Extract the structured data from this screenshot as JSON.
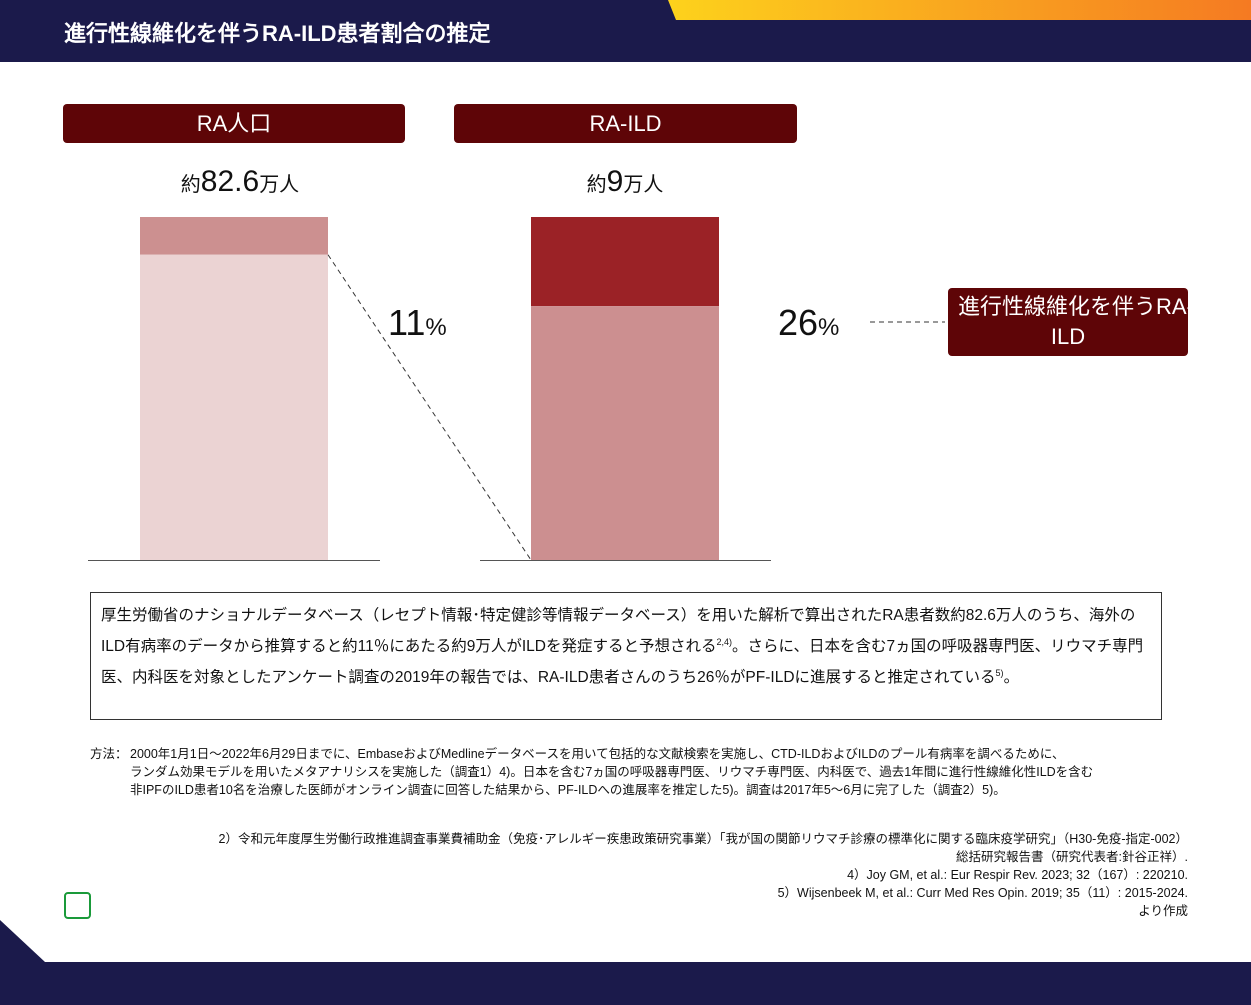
{
  "title": "進行性線維化を伴うRA-ILD患者割合の推定",
  "colors": {
    "header": "#1b1a4b",
    "pill": "#5e0507",
    "left_base": "#ebd3d3",
    "left_top": "#cc9090",
    "right_base": "#cc8f90",
    "right_top": "#9b2226"
  },
  "chart_data": {
    "type": "bar",
    "stacked": true,
    "categories": [
      "RA人口",
      "RA-ILD"
    ],
    "totals": [
      {
        "prefix": "約",
        "value": "82.6",
        "unit": "万人"
      },
      {
        "prefix": "約",
        "value": "9",
        "unit": "万人"
      }
    ],
    "series": [
      {
        "values": [
          89,
          74
        ]
      },
      {
        "values": [
          11,
          26
        ]
      }
    ],
    "percent_labels": [
      {
        "value": "11",
        "unit": "%"
      },
      {
        "value": "26",
        "unit": "%"
      }
    ],
    "annotation": "進行性線維化を伴うRA-ILD"
  },
  "note": "厚生労働省のナショナルデータベース（レセプト情報･特定健診等情報データベース）を用いた解析で算出されたRA患者数約82.6万人のうち、海外のILD有病率のデータから推算すると約11％にあたる約9万人がILDを発症すると予想される",
  "note_sup1": "2,4)",
  "note2": "。さらに、日本を含む7ヵ国の呼吸器専門医、リウマチ専門医、内科医を対象としたアンケート調査の2019年の報告では、RA-ILD患者さんのうち26％がPF-ILDに進展すると推定されている",
  "note_sup2": "5)",
  "note3": "。",
  "method_label": "方法：",
  "method": [
    "2000年1月1日～2022年6月29日までに、EmbaseおよびMedlineデータベースを用いて包括的な文献検索を実施し、CTD-ILDおよびILDのプール有病率を調べるために、",
    "ランダム効果モデルを用いたメタアナリシスを実施した（調査1）4)。日本を含む7ヵ国の呼吸器専門医、リウマチ専門医、内科医で、過去1年間に進行性線維化性ILDを含む",
    "非IPFのILD患者10名を治療した医師がオンライン調査に回答した結果から、PF-ILDへの進展率を推定した5)。調査は2017年5～6月に完了した（調査2）5)。"
  ],
  "refs": [
    "2）令和元年度厚生労働行政推進調査事業費補助金（免疫･アレルギー疾患政策研究事業）「我が国の関節リウマチ診療の標準化に関する臨床疫学研究」（H30-免疫-指定-002）",
    "総括研究報告書（研究代表者:針谷正祥）.",
    "4）Joy GM, et al.: Eur Respir Rev. 2023; 32（167）: 220210.",
    "5）Wijsenbeek M, et al.: Curr Med Res Opin. 2019; 35（11）: 2015-2024.",
    "より作成"
  ],
  "logo": "PC"
}
